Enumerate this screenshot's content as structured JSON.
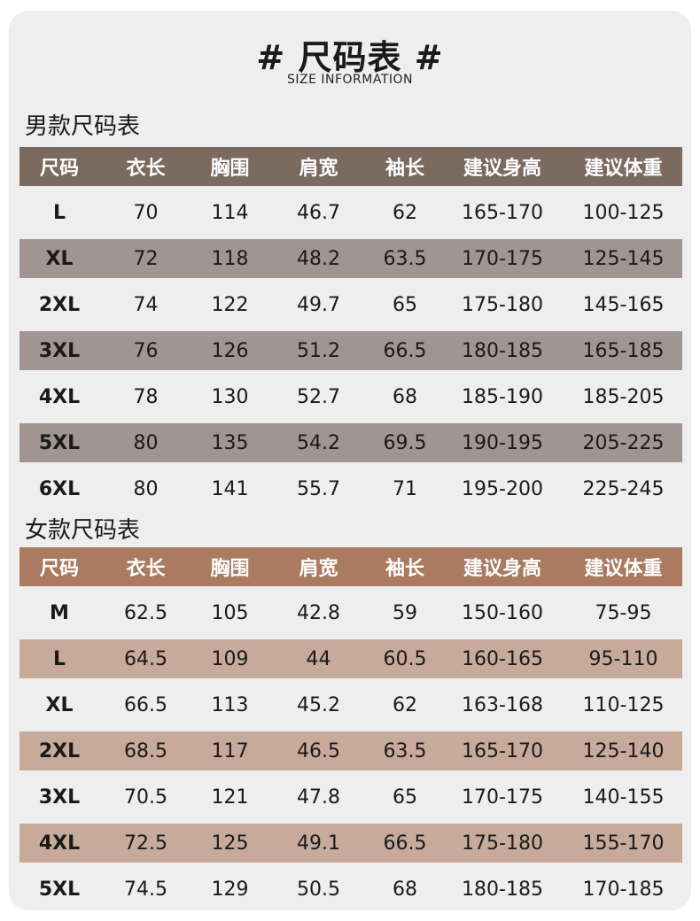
{
  "title": "# 尺码表 #",
  "subtitle": "SIZE INFORMATION",
  "men": {
    "label": "男款尺码表",
    "headers": [
      "尺码",
      "衣长",
      "胸围",
      "肩宽",
      "袖长",
      "建议身高",
      "建议体重"
    ],
    "rows": [
      [
        "L",
        "70",
        "114",
        "46.7",
        "62",
        "165-170",
        "100-125"
      ],
      [
        "XL",
        "72",
        "118",
        "48.2",
        "63.5",
        "170-175",
        "125-145"
      ],
      [
        "2XL",
        "74",
        "122",
        "49.7",
        "65",
        "175-180",
        "145-165"
      ],
      [
        "3XL",
        "76",
        "126",
        "51.2",
        "66.5",
        "180-185",
        "165-185"
      ],
      [
        "4XL",
        "78",
        "130",
        "52.7",
        "68",
        "185-190",
        "185-205"
      ],
      [
        "5XL",
        "80",
        "135",
        "54.2",
        "69.5",
        "190-195",
        "205-225"
      ],
      [
        "6XL",
        "80",
        "141",
        "55.7",
        "71",
        "195-200",
        "225-245"
      ]
    ]
  },
  "women": {
    "label": "女款尺码表",
    "headers": [
      "尺码",
      "衣长",
      "胸围",
      "肩宽",
      "袖长",
      "建议身高",
      "建议体重"
    ],
    "rows": [
      [
        "M",
        "62.5",
        "105",
        "42.8",
        "59",
        "150-160",
        "75-95"
      ],
      [
        "L",
        "64.5",
        "109",
        "44",
        "60.5",
        "160-165",
        "95-110"
      ],
      [
        "XL",
        "66.5",
        "113",
        "45.2",
        "62",
        "163-168",
        "110-125"
      ],
      [
        "2XL",
        "68.5",
        "117",
        "46.5",
        "63.5",
        "165-170",
        "125-140"
      ],
      [
        "3XL",
        "70.5",
        "121",
        "47.8",
        "65",
        "170-175",
        "140-155"
      ],
      [
        "4XL",
        "72.5",
        "125",
        "49.1",
        "66.5",
        "175-180",
        "155-170"
      ],
      [
        "5XL",
        "74.5",
        "129",
        "50.5",
        "68",
        "180-185",
        "170-185"
      ]
    ]
  },
  "colors": {
    "men_header": "#7b6a5f",
    "men_shade": "#a09591",
    "women_header": "#aa7a61",
    "women_shade": "#c7aa9a",
    "background": "#efeeee"
  }
}
